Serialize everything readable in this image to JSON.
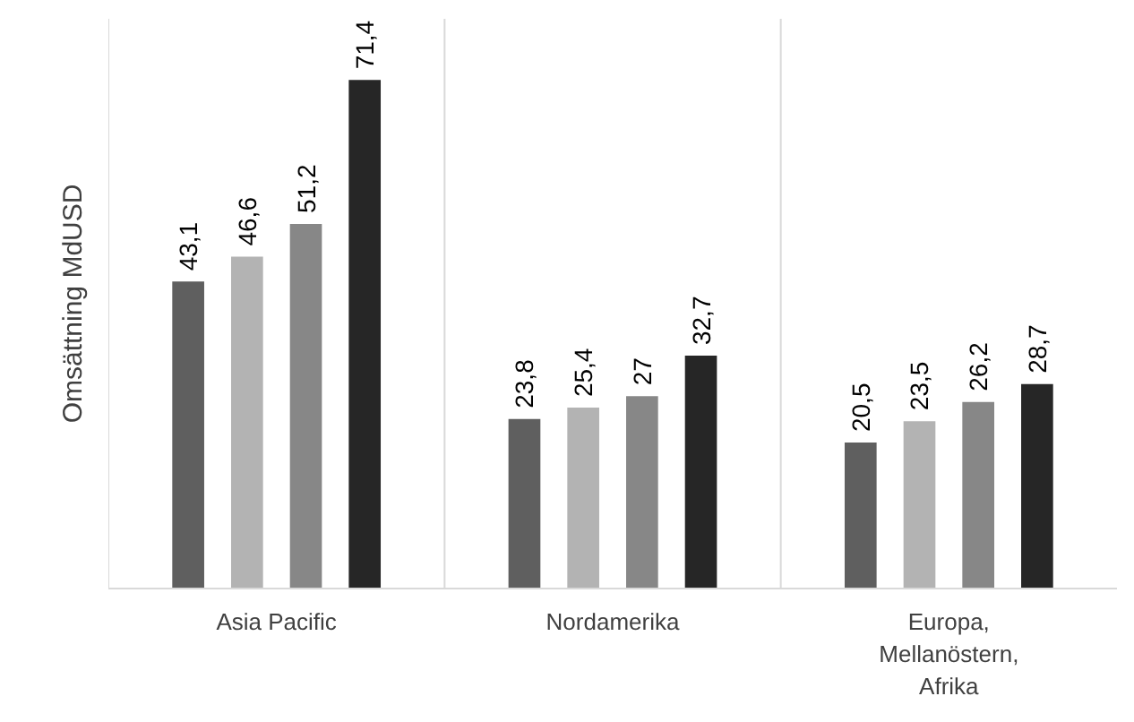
{
  "chart_data": {
    "type": "bar",
    "ylabel": "Omsättning MdUSD",
    "categories": [
      "Asia Pacific",
      "Nordamerika",
      "Europa, Mellanöstern, Afrika"
    ],
    "series": [
      {
        "color": "#5f5f5f",
        "values": [
          43.1,
          23.8,
          20.5
        ],
        "value_labels": [
          "43,1",
          "23,8",
          "20,5"
        ]
      },
      {
        "color": "#b3b3b3",
        "values": [
          46.6,
          25.4,
          23.5
        ],
        "value_labels": [
          "46,6",
          "25,4",
          "23,5"
        ]
      },
      {
        "color": "#878787",
        "values": [
          51.2,
          27,
          26.2
        ],
        "value_labels": [
          "51,2",
          "27",
          "26,2"
        ]
      },
      {
        "color": "#262626",
        "values": [
          71.4,
          32.7,
          28.7
        ],
        "value_labels": [
          "71,4",
          "32,7",
          "28,7"
        ]
      }
    ],
    "ylim": [
      0,
      80
    ],
    "grid": "x"
  }
}
